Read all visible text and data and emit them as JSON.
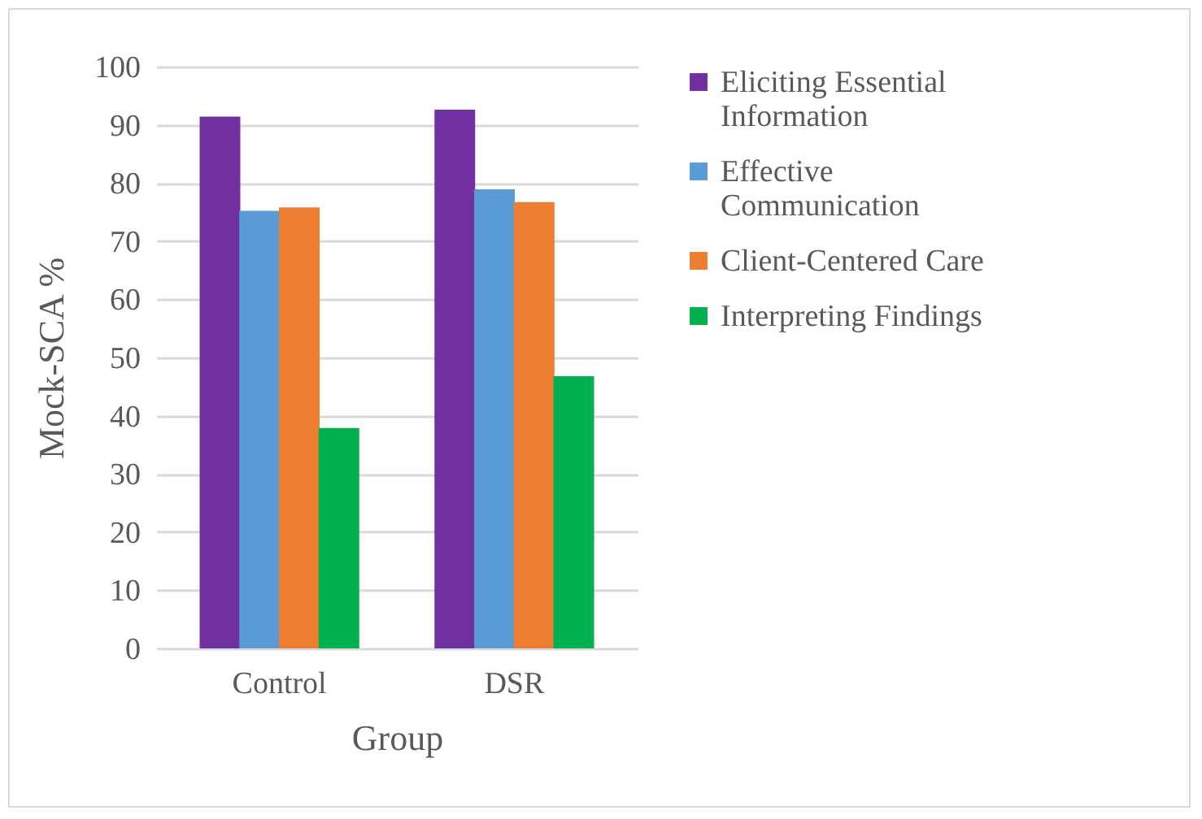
{
  "chart_data": {
    "type": "bar",
    "xlabel": "Group",
    "ylabel": "Mock-SCA %",
    "categories": [
      "Control",
      "DSR"
    ],
    "series": [
      {
        "name": "Eliciting Essential Information",
        "color": "#7030a0",
        "values": [
          91.4,
          92.6
        ]
      },
      {
        "name": "Effective Communication",
        "color": "#5b9bd5",
        "values": [
          75.2,
          78.9
        ]
      },
      {
        "name": "Client-Centered Care",
        "color": "#ed7d31",
        "values": [
          75.8,
          76.7
        ]
      },
      {
        "name": "Interpreting Findings",
        "color": "#00b050",
        "values": [
          37.9,
          46.8
        ]
      }
    ],
    "ylim": [
      0,
      100
    ],
    "yticks": [
      0,
      10,
      20,
      30,
      40,
      50,
      60,
      70,
      80,
      90,
      100
    ],
    "grid": "y",
    "legend": "right"
  }
}
